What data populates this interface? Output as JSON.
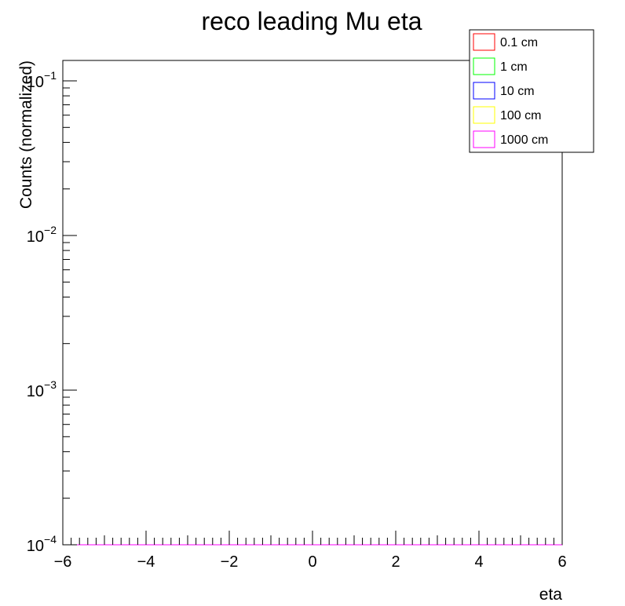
{
  "chart_data": {
    "type": "histogram",
    "title": "reco leading Mu eta",
    "xlabel": "eta",
    "ylabel": "Counts (normalized)",
    "xlim": [
      -6,
      6
    ],
    "ylim": [
      0.0001,
      0.13
    ],
    "yscale": "log",
    "bin_edges_start": -6,
    "bin_width": 0.3,
    "x_ticks": [
      "−6",
      "−4",
      "−2",
      "0",
      "2",
      "4",
      "6"
    ],
    "y_ticks": [
      {
        "base": "10",
        "exp": "−4"
      },
      {
        "base": "10",
        "exp": "−3"
      },
      {
        "base": "10",
        "exp": "−2"
      },
      {
        "base": "10",
        "exp": "−1"
      }
    ],
    "legend_position": "top-right",
    "series": [
      {
        "name": "0.1 cm",
        "color": "#ff0000",
        "values": [
          0.0001,
          0.0001,
          0.0001,
          0.0001,
          0.0001,
          0.0001,
          0.0001,
          0.0001,
          0.0001,
          0.0001,
          0.0001,
          0.0001,
          0.0001,
          0.0001,
          0.0001,
          0.0001,
          0.0001,
          0.0001,
          0.0001,
          0.0001,
          0.0001,
          0.0001,
          0.0001,
          0.0001,
          0.0001,
          0.0001,
          0.0001,
          0.0001,
          0.0001,
          0.0001,
          0.0001,
          0.0001,
          0.0001,
          0.0001,
          0.0001,
          0.0001,
          0.0001,
          0.0001,
          0.0001,
          0.0001
        ]
      },
      {
        "name": "1 cm",
        "color": "#00ff00",
        "values": [
          0.0001,
          0.0001,
          0.0001,
          0.0001,
          0.0001,
          0.0001,
          0.0001,
          0.0001,
          0.0001,
          0.0001,
          0.0001,
          0.0001,
          0.0001,
          0.0001,
          0.0001,
          0.0001,
          0.0001,
          0.0001,
          0.0001,
          0.0001,
          0.0001,
          0.0001,
          0.0001,
          0.0001,
          0.0001,
          0.0001,
          0.0001,
          0.0001,
          0.0001,
          0.0001,
          0.0001,
          0.0001,
          0.0001,
          0.0001,
          0.0001,
          0.0001,
          0.0001,
          0.0001,
          0.0001,
          0.0001
        ]
      },
      {
        "name": "10 cm",
        "color": "#0000ff",
        "values": [
          0.0001,
          0.0001,
          0.0001,
          0.0001,
          0.0001,
          0.0001,
          0.0001,
          0.0001,
          0.0001,
          0.0001,
          0.0001,
          0.0001,
          0.0001,
          0.0001,
          0.0001,
          0.0001,
          0.0001,
          0.0001,
          0.0001,
          0.0001,
          0.0001,
          0.0001,
          0.0001,
          0.0001,
          0.0001,
          0.0001,
          0.0001,
          0.0001,
          0.0001,
          0.0001,
          0.0001,
          0.0001,
          0.0001,
          0.0001,
          0.0001,
          0.0001,
          0.0001,
          0.0001,
          0.0001,
          0.0001
        ]
      },
      {
        "name": "100 cm",
        "color": "#ffff00",
        "values": [
          0.0001,
          0.0001,
          0.0001,
          0.0001,
          0.0001,
          0.0001,
          0.0001,
          0.0001,
          0.0001,
          0.0001,
          0.0001,
          0.0001,
          0.0001,
          0.0001,
          0.0001,
          0.0001,
          0.0001,
          0.0001,
          0.0001,
          0.0001,
          0.0001,
          0.0001,
          0.0001,
          0.0001,
          0.0001,
          0.0001,
          0.0001,
          0.0001,
          0.0001,
          0.0001,
          0.0001,
          0.0001,
          0.0001,
          0.0001,
          0.0001,
          0.0001,
          0.0001,
          0.0001,
          0.0001,
          0.0001
        ]
      },
      {
        "name": "1000 cm",
        "color": "#ff00ff",
        "values": [
          0.0001,
          0.0001,
          0.0001,
          0.0001,
          0.0001,
          0.0001,
          0.0001,
          0.0001,
          0.0001,
          0.0001,
          0.0001,
          0.0001,
          0.0001,
          0.0001,
          0.0001,
          0.0001,
          0.0001,
          0.0001,
          0.0001,
          0.0001,
          0.0001,
          0.0001,
          0.0001,
          0.0001,
          0.0001,
          0.0001,
          0.0001,
          0.0001,
          0.0001,
          0.0001,
          0.0001,
          0.0001,
          0.0001,
          0.0001,
          0.0001,
          0.0001,
          0.0001,
          0.0001,
          0.0001,
          0.0001
        ]
      }
    ]
  }
}
